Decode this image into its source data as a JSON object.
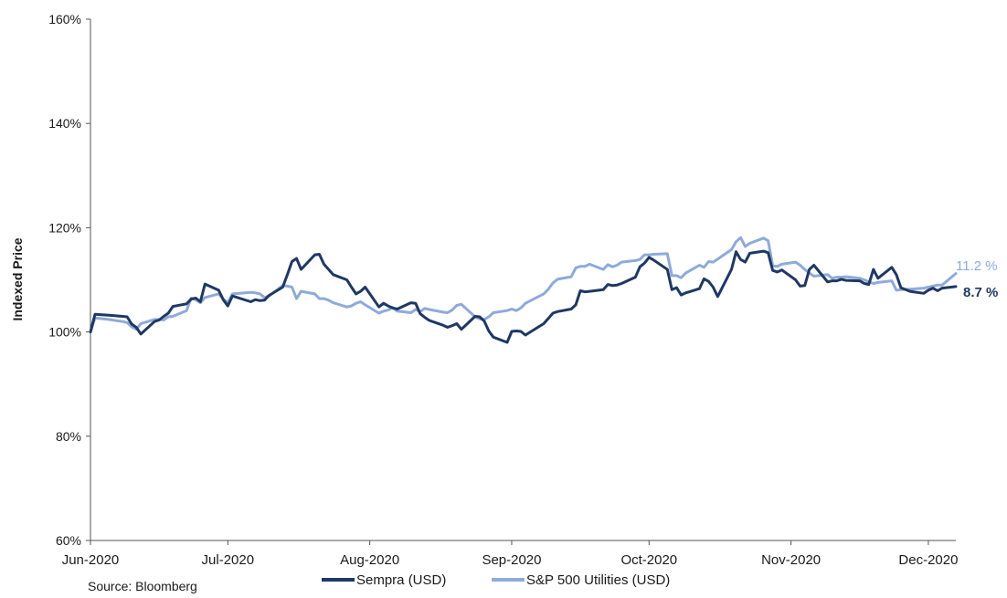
{
  "chart_data": {
    "type": "line",
    "ylabel": "Indexed Price",
    "xlabel": "",
    "ylim": [
      60,
      160
    ],
    "y_ticks": [
      60,
      80,
      100,
      120,
      140,
      160
    ],
    "y_tick_labels": [
      "60%",
      "80%",
      "100%",
      "120%",
      "140%",
      "160%"
    ],
    "x_range": [
      "2020-06-01",
      "2020-12-07"
    ],
    "x_ticks": [
      "2020-06-01",
      "2020-07-01",
      "2020-08-01",
      "2020-09-01",
      "2020-10-01",
      "2020-11-01",
      "2020-12-01"
    ],
    "x_tick_labels": [
      "Jun-2020",
      "Jul-2020",
      "Aug-2020",
      "Sep-2020",
      "Oct-2020",
      "Nov-2020",
      "Dec-2020"
    ],
    "grid": false,
    "legend_position": "bottom",
    "source": "Source: Bloomberg",
    "series": [
      {
        "name": "Sempra (USD)",
        "color": "#1f3864",
        "end_label": "8.7 %",
        "x": [
          "2020-06-01",
          "2020-06-02",
          "2020-06-05",
          "2020-06-08",
          "2020-06-09",
          "2020-06-10",
          "2020-06-11",
          "2020-06-12",
          "2020-06-15",
          "2020-06-16",
          "2020-06-17",
          "2020-06-18",
          "2020-06-19",
          "2020-06-22",
          "2020-06-23",
          "2020-06-24",
          "2020-06-25",
          "2020-06-26",
          "2020-06-29",
          "2020-06-30",
          "2020-07-01",
          "2020-07-02",
          "2020-07-06",
          "2020-07-07",
          "2020-07-08",
          "2020-07-09",
          "2020-07-10",
          "2020-07-13",
          "2020-07-14",
          "2020-07-15",
          "2020-07-16",
          "2020-07-17",
          "2020-07-20",
          "2020-07-21",
          "2020-07-22",
          "2020-07-23",
          "2020-07-24",
          "2020-07-27",
          "2020-07-28",
          "2020-07-29",
          "2020-07-30",
          "2020-07-31",
          "2020-08-03",
          "2020-08-04",
          "2020-08-05",
          "2020-08-06",
          "2020-08-07",
          "2020-08-10",
          "2020-08-11",
          "2020-08-12",
          "2020-08-13",
          "2020-08-14",
          "2020-08-17",
          "2020-08-18",
          "2020-08-19",
          "2020-08-20",
          "2020-08-21",
          "2020-08-24",
          "2020-08-25",
          "2020-08-26",
          "2020-08-27",
          "2020-08-28",
          "2020-08-31",
          "2020-09-01",
          "2020-09-02",
          "2020-09-03",
          "2020-09-04",
          "2020-09-08",
          "2020-09-09",
          "2020-09-10",
          "2020-09-11",
          "2020-09-14",
          "2020-09-15",
          "2020-09-16",
          "2020-09-17",
          "2020-09-18",
          "2020-09-21",
          "2020-09-22",
          "2020-09-23",
          "2020-09-24",
          "2020-09-25",
          "2020-09-28",
          "2020-09-29",
          "2020-09-30",
          "2020-10-01",
          "2020-10-02",
          "2020-10-05",
          "2020-10-06",
          "2020-10-07",
          "2020-10-08",
          "2020-10-09",
          "2020-10-12",
          "2020-10-13",
          "2020-10-14",
          "2020-10-15",
          "2020-10-16",
          "2020-10-19",
          "2020-10-20",
          "2020-10-21",
          "2020-10-22",
          "2020-10-23",
          "2020-10-26",
          "2020-10-27",
          "2020-10-28",
          "2020-10-29",
          "2020-10-30",
          "2020-11-02",
          "2020-11-03",
          "2020-11-04",
          "2020-11-05",
          "2020-11-06",
          "2020-11-09",
          "2020-11-10",
          "2020-11-11",
          "2020-11-12",
          "2020-11-13",
          "2020-11-16",
          "2020-11-17",
          "2020-11-18",
          "2020-11-19",
          "2020-11-20",
          "2020-11-23",
          "2020-11-24",
          "2020-11-25",
          "2020-11-27",
          "2020-11-30",
          "2020-12-01",
          "2020-12-02",
          "2020-12-03",
          "2020-12-04",
          "2020-12-07"
        ],
        "y": [
          100.0,
          103.4,
          103.2,
          103.0,
          102.9,
          101.5,
          100.9,
          99.6,
          102.0,
          102.3,
          103.0,
          103.6,
          104.9,
          105.4,
          106.3,
          106.5,
          105.8,
          109.2,
          108.0,
          106.2,
          105.0,
          106.9,
          105.8,
          106.2,
          106.0,
          106.1,
          107.0,
          108.6,
          111.0,
          113.5,
          114.1,
          112.0,
          114.8,
          114.9,
          113.0,
          112.0,
          111.0,
          110.0,
          108.6,
          107.3,
          107.8,
          108.6,
          104.8,
          105.5,
          105.0,
          104.6,
          104.4,
          105.6,
          105.5,
          103.5,
          102.8,
          102.2,
          101.3,
          100.9,
          101.2,
          101.6,
          100.5,
          103.0,
          102.9,
          102.1,
          100.2,
          99.0,
          98.0,
          100.1,
          100.2,
          100.1,
          99.4,
          101.6,
          102.6,
          103.6,
          103.9,
          104.4,
          105.2,
          107.9,
          107.7,
          107.8,
          108.1,
          109.1,
          108.9,
          109.0,
          109.3,
          110.5,
          112.5,
          113.2,
          114.3,
          113.8,
          112.0,
          108.1,
          108.5,
          107.1,
          107.5,
          108.3,
          110.2,
          109.7,
          108.6,
          106.8,
          112.0,
          115.4,
          113.9,
          113.4,
          115.1,
          115.5,
          115.2,
          111.8,
          111.5,
          111.9,
          110.0,
          108.8,
          108.9,
          112.0,
          112.8,
          109.6,
          109.8,
          109.8,
          110.1,
          109.9,
          109.8,
          109.3,
          109.1,
          112.0,
          110.3,
          112.4,
          111.0,
          108.5,
          107.8,
          107.4,
          108.0,
          108.4,
          107.9,
          108.4,
          108.7
        ]
      },
      {
        "name": "S&P 500 Utilities (USD)",
        "color": "#8eaadb",
        "end_label": "11.2 %",
        "x": [
          "2020-06-01",
          "2020-06-02",
          "2020-06-05",
          "2020-06-08",
          "2020-06-09",
          "2020-06-10",
          "2020-06-11",
          "2020-06-12",
          "2020-06-15",
          "2020-06-16",
          "2020-06-17",
          "2020-06-18",
          "2020-06-19",
          "2020-06-22",
          "2020-06-23",
          "2020-06-24",
          "2020-06-25",
          "2020-06-26",
          "2020-06-29",
          "2020-06-30",
          "2020-07-01",
          "2020-07-02",
          "2020-07-06",
          "2020-07-07",
          "2020-07-08",
          "2020-07-09",
          "2020-07-10",
          "2020-07-13",
          "2020-07-14",
          "2020-07-15",
          "2020-07-16",
          "2020-07-17",
          "2020-07-20",
          "2020-07-21",
          "2020-07-22",
          "2020-07-23",
          "2020-07-24",
          "2020-07-27",
          "2020-07-28",
          "2020-07-29",
          "2020-07-30",
          "2020-07-31",
          "2020-08-03",
          "2020-08-04",
          "2020-08-05",
          "2020-08-06",
          "2020-08-07",
          "2020-08-10",
          "2020-08-11",
          "2020-08-12",
          "2020-08-13",
          "2020-08-14",
          "2020-08-17",
          "2020-08-18",
          "2020-08-19",
          "2020-08-20",
          "2020-08-21",
          "2020-08-24",
          "2020-08-25",
          "2020-08-26",
          "2020-08-27",
          "2020-08-28",
          "2020-08-31",
          "2020-09-01",
          "2020-09-02",
          "2020-09-03",
          "2020-09-04",
          "2020-09-08",
          "2020-09-09",
          "2020-09-10",
          "2020-09-11",
          "2020-09-14",
          "2020-09-15",
          "2020-09-16",
          "2020-09-17",
          "2020-09-18",
          "2020-09-21",
          "2020-09-22",
          "2020-09-23",
          "2020-09-24",
          "2020-09-25",
          "2020-09-28",
          "2020-09-29",
          "2020-09-30",
          "2020-10-01",
          "2020-10-02",
          "2020-10-05",
          "2020-10-06",
          "2020-10-07",
          "2020-10-08",
          "2020-10-09",
          "2020-10-12",
          "2020-10-13",
          "2020-10-14",
          "2020-10-15",
          "2020-10-16",
          "2020-10-19",
          "2020-10-20",
          "2020-10-21",
          "2020-10-22",
          "2020-10-23",
          "2020-10-26",
          "2020-10-27",
          "2020-10-28",
          "2020-10-29",
          "2020-10-30",
          "2020-11-02",
          "2020-11-03",
          "2020-11-04",
          "2020-11-05",
          "2020-11-06",
          "2020-11-09",
          "2020-11-10",
          "2020-11-11",
          "2020-11-12",
          "2020-11-13",
          "2020-11-16",
          "2020-11-17",
          "2020-11-18",
          "2020-11-19",
          "2020-11-20",
          "2020-11-23",
          "2020-11-24",
          "2020-11-25",
          "2020-11-27",
          "2020-11-30",
          "2020-12-01",
          "2020-12-02",
          "2020-12-03",
          "2020-12-04",
          "2020-12-07"
        ],
        "y": [
          100.0,
          102.7,
          102.4,
          102.0,
          101.8,
          101.0,
          100.5,
          101.6,
          102.4,
          102.4,
          102.3,
          102.9,
          103.0,
          104.1,
          106.5,
          106.2,
          105.6,
          106.6,
          107.3,
          106.3,
          105.6,
          107.3,
          107.6,
          107.5,
          107.3,
          106.6,
          106.9,
          108.9,
          108.8,
          108.6,
          106.4,
          107.8,
          107.3,
          106.4,
          106.4,
          106.1,
          105.6,
          104.8,
          105.0,
          105.5,
          105.8,
          105.2,
          103.6,
          104.0,
          104.2,
          104.7,
          104.0,
          103.7,
          104.3,
          103.9,
          104.5,
          104.3,
          103.8,
          103.7,
          104.2,
          105.1,
          105.3,
          102.9,
          102.5,
          102.4,
          102.9,
          103.7,
          104.1,
          104.4,
          104.1,
          104.6,
          105.5,
          107.3,
          108.2,
          109.4,
          110.1,
          110.6,
          112.3,
          112.6,
          112.6,
          113.0,
          112.0,
          112.9,
          112.5,
          112.8,
          113.4,
          113.7,
          113.9,
          114.8,
          114.8,
          114.9,
          115.0,
          110.8,
          110.8,
          110.4,
          111.3,
          112.8,
          112.4,
          113.5,
          113.4,
          114.0,
          115.8,
          117.3,
          118.1,
          116.4,
          117.0,
          118.0,
          117.5,
          112.7,
          112.6,
          113.0,
          113.4,
          112.8,
          112.0,
          111.3,
          110.7,
          111.0,
          110.3,
          110.5,
          110.5,
          110.6,
          110.3,
          110.0,
          109.6,
          109.3,
          109.5,
          109.8,
          108.0,
          108.1,
          108.2,
          108.4,
          108.6,
          108.8,
          109.0,
          109.0,
          111.2
        ]
      }
    ]
  }
}
